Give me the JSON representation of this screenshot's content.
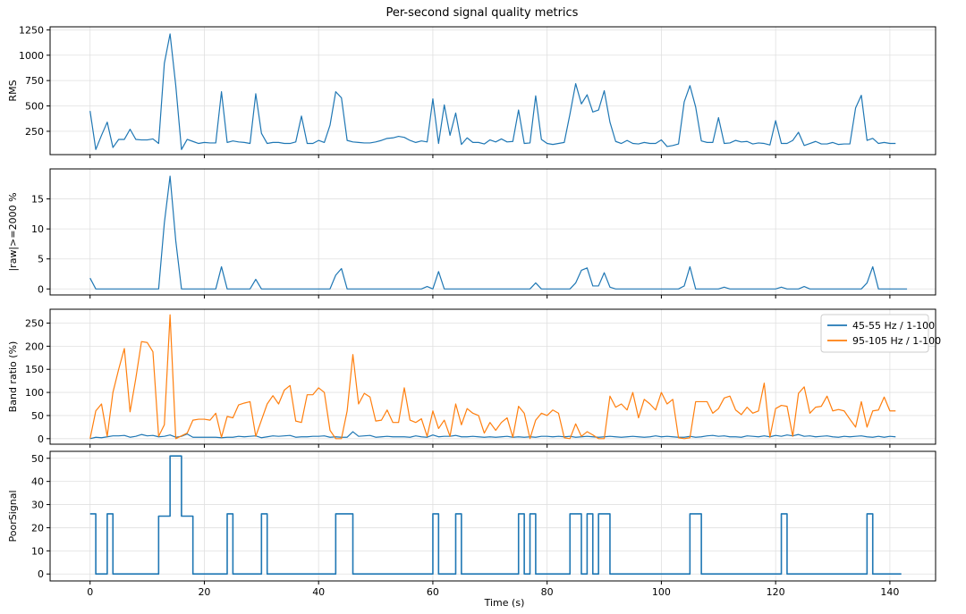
{
  "title": "Per-second signal quality metrics",
  "xlabel": "Time (s)",
  "colors": {
    "blue": "#1f77b4",
    "orange": "#ff7f0e",
    "grid": "#e0e0e0",
    "axis": "#000000"
  },
  "chart_data": [
    {
      "type": "line",
      "ylabel": "RMS",
      "xlim": [
        -7,
        148
      ],
      "ylim": [
        20,
        1280
      ],
      "yticks": [
        250,
        500,
        750,
        1000,
        1250
      ],
      "xticks": [
        0,
        20,
        40,
        60,
        80,
        100,
        120,
        140
      ],
      "x_start": 0,
      "x_step": 1,
      "series": [
        {
          "name": "",
          "color": "#1f77b4",
          "values": [
            450,
            70,
            210,
            340,
            90,
            170,
            170,
            270,
            170,
            165,
            165,
            175,
            130,
            920,
            1210,
            700,
            70,
            170,
            150,
            130,
            140,
            135,
            135,
            640,
            140,
            155,
            145,
            140,
            130,
            620,
            230,
            130,
            140,
            140,
            130,
            130,
            145,
            400,
            130,
            130,
            160,
            140,
            310,
            640,
            580,
            160,
            145,
            140,
            135,
            135,
            145,
            160,
            180,
            185,
            200,
            190,
            160,
            140,
            155,
            145,
            570,
            130,
            510,
            210,
            430,
            120,
            185,
            140,
            140,
            125,
            165,
            145,
            175,
            145,
            150,
            460,
            130,
            135,
            600,
            170,
            130,
            120,
            130,
            140,
            420,
            720,
            520,
            610,
            440,
            460,
            650,
            340,
            150,
            130,
            160,
            130,
            125,
            140,
            130,
            130,
            165,
            100,
            110,
            125,
            540,
            700,
            490,
            155,
            140,
            140,
            385,
            130,
            135,
            160,
            145,
            150,
            125,
            135,
            130,
            115,
            355,
            130,
            130,
            160,
            240,
            110,
            130,
            150,
            125,
            125,
            140,
            120,
            125,
            125,
            480,
            605,
            160,
            180,
            130,
            140,
            130,
            130
          ]
        }
      ]
    },
    {
      "type": "line",
      "ylabel": "|raw|>=2000 %",
      "xlim": [
        -7,
        148
      ],
      "ylim": [
        -1,
        20
      ],
      "yticks": [
        0,
        5,
        10,
        15
      ],
      "xticks": [
        0,
        20,
        40,
        60,
        80,
        100,
        120,
        140
      ],
      "x_start": 0,
      "x_step": 1,
      "series": [
        {
          "name": "",
          "color": "#1f77b4",
          "values": [
            1.8,
            0,
            0,
            0,
            0,
            0,
            0,
            0,
            0,
            0,
            0,
            0,
            0,
            11,
            18.8,
            8,
            0,
            0,
            0,
            0,
            0,
            0,
            0,
            3.7,
            0,
            0,
            0,
            0,
            0,
            1.6,
            0,
            0,
            0,
            0,
            0,
            0,
            0,
            0,
            0,
            0,
            0,
            0,
            0,
            2.3,
            3.4,
            0,
            0,
            0,
            0,
            0,
            0,
            0,
            0,
            0,
            0,
            0,
            0,
            0,
            0,
            0.4,
            0,
            2.9,
            0,
            0,
            0,
            0,
            0,
            0,
            0,
            0,
            0,
            0,
            0,
            0,
            0,
            0,
            0,
            0,
            1.0,
            0,
            0,
            0,
            0,
            0,
            0,
            1.0,
            3.1,
            3.5,
            0.5,
            0.5,
            2.7,
            0.3,
            0,
            0,
            0,
            0,
            0,
            0,
            0,
            0,
            0,
            0,
            0,
            0,
            0.5,
            3.7,
            0,
            0,
            0,
            0,
            0,
            0.3,
            0,
            0,
            0,
            0,
            0,
            0,
            0,
            0,
            0,
            0.3,
            0,
            0,
            0,
            0.4,
            0,
            0,
            0,
            0,
            0,
            0,
            0,
            0,
            0,
            0,
            1.0,
            3.7,
            0,
            0,
            0,
            0,
            0,
            0
          ]
        }
      ]
    },
    {
      "type": "line",
      "ylabel": "Band ratio (%)",
      "xlim": [
        -7,
        148
      ],
      "ylim": [
        -12,
        280
      ],
      "yticks": [
        0,
        50,
        100,
        150,
        200,
        250
      ],
      "xticks": [
        0,
        20,
        40,
        60,
        80,
        100,
        120,
        140
      ],
      "x_start": 0,
      "x_step": 1,
      "legend": "top-right",
      "series": [
        {
          "name": "45-55 Hz / 1-100",
          "color": "#1f77b4",
          "values": [
            0,
            3,
            2,
            4,
            6,
            6,
            7,
            3,
            5,
            9,
            6,
            7,
            4,
            5,
            8,
            3,
            5,
            10,
            3,
            3,
            3,
            3,
            3,
            2,
            3,
            3,
            5,
            4,
            5,
            6,
            2,
            4,
            6,
            5,
            6,
            7,
            3,
            4,
            4,
            5,
            5,
            6,
            3,
            4,
            3,
            3,
            15,
            5,
            6,
            7,
            3,
            4,
            5,
            4,
            4,
            4,
            3,
            6,
            4,
            3,
            8,
            4,
            5,
            5,
            7,
            4,
            4,
            5,
            4,
            3,
            4,
            3,
            4,
            5,
            3,
            4,
            3,
            4,
            3,
            5,
            5,
            4,
            5,
            4,
            5,
            3,
            4,
            5,
            4,
            3,
            4,
            5,
            4,
            3,
            4,
            5,
            4,
            3,
            4,
            6,
            4,
            5,
            4,
            3,
            3,
            5,
            3,
            4,
            6,
            7,
            5,
            6,
            4,
            4,
            3,
            6,
            5,
            4,
            6,
            4,
            7,
            5,
            8,
            6,
            9,
            5,
            6,
            4,
            5,
            6,
            4,
            3,
            5,
            4,
            5,
            6,
            4,
            3,
            5,
            3,
            5,
            4
          ]
        },
        {
          "name": "95-105 Hz / 1-100",
          "color": "#ff7f0e",
          "values": [
            0,
            60,
            75,
            5,
            100,
            150,
            195,
            58,
            130,
            210,
            208,
            188,
            5,
            30,
            268,
            0,
            6,
            12,
            40,
            42,
            42,
            40,
            55,
            3,
            48,
            45,
            73,
            77,
            80,
            5,
            40,
            75,
            93,
            75,
            105,
            115,
            38,
            35,
            95,
            95,
            110,
            100,
            18,
            0,
            0,
            60,
            182,
            75,
            98,
            90,
            38,
            40,
            62,
            35,
            35,
            110,
            40,
            35,
            43,
            5,
            60,
            22,
            40,
            5,
            75,
            30,
            65,
            55,
            50,
            12,
            35,
            18,
            35,
            45,
            3,
            70,
            55,
            0,
            40,
            55,
            50,
            62,
            55,
            2,
            0,
            32,
            5,
            15,
            8,
            0,
            0,
            92,
            68,
            75,
            62,
            100,
            45,
            85,
            75,
            62,
            100,
            75,
            85,
            2,
            0,
            2,
            80,
            80,
            80,
            55,
            65,
            88,
            92,
            62,
            52,
            68,
            55,
            60,
            120,
            3,
            65,
            72,
            70,
            5,
            98,
            112,
            55,
            68,
            70,
            92,
            60,
            63,
            60,
            42,
            25,
            80,
            25,
            60,
            62,
            90,
            60,
            60
          ]
        }
      ]
    },
    {
      "type": "line",
      "ylabel": "PoorSignal",
      "xlim": [
        -7,
        148
      ],
      "ylim": [
        -3,
        53
      ],
      "yticks": [
        0,
        10,
        20,
        30,
        40,
        50
      ],
      "xticks": [
        0,
        20,
        40,
        60,
        80,
        100,
        120,
        140
      ],
      "x_start": 0,
      "x_step": 1,
      "step": true,
      "series": [
        {
          "name": "",
          "color": "#1f77b4",
          "values": [
            26,
            0,
            0,
            26,
            0,
            0,
            0,
            0,
            0,
            0,
            0,
            0,
            25,
            25,
            51,
            51,
            25,
            25,
            0,
            0,
            0,
            0,
            0,
            0,
            26,
            0,
            0,
            0,
            0,
            0,
            26,
            0,
            0,
            0,
            0,
            0,
            0,
            0,
            0,
            0,
            0,
            0,
            0,
            26,
            26,
            26,
            0,
            0,
            0,
            0,
            0,
            0,
            0,
            0,
            0,
            0,
            0,
            0,
            0,
            0,
            26,
            0,
            0,
            0,
            26,
            0,
            0,
            0,
            0,
            0,
            0,
            0,
            0,
            0,
            0,
            26,
            0,
            26,
            0,
            0,
            0,
            0,
            0,
            0,
            26,
            26,
            0,
            26,
            0,
            26,
            26,
            0,
            0,
            0,
            0,
            0,
            0,
            0,
            0,
            0,
            0,
            0,
            0,
            0,
            0,
            26,
            26,
            0,
            0,
            0,
            0,
            0,
            0,
            0,
            0,
            0,
            0,
            0,
            0,
            0,
            0,
            26,
            0,
            0,
            0,
            0,
            0,
            0,
            0,
            0,
            0,
            0,
            0,
            0,
            0,
            0,
            26,
            0,
            0,
            0,
            0,
            0,
            0
          ]
        }
      ]
    }
  ]
}
